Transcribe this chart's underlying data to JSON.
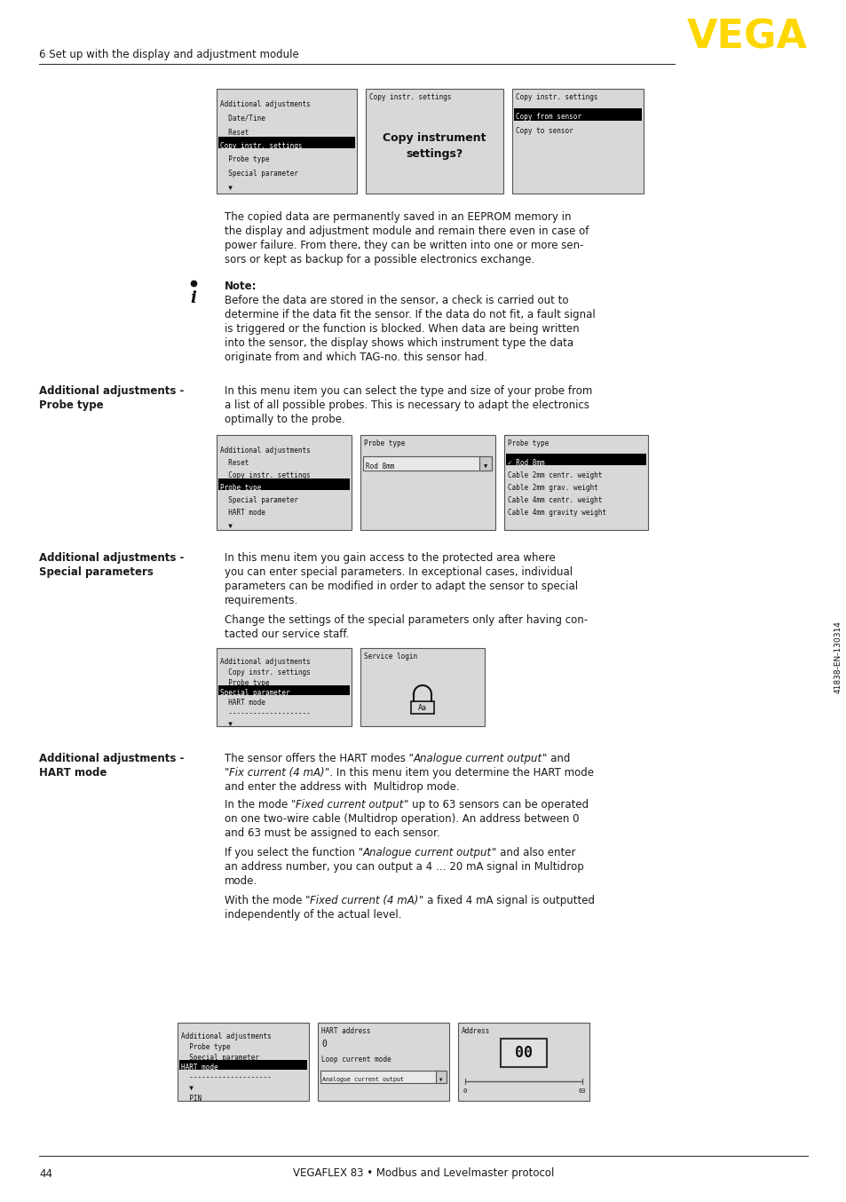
{
  "page_number": "44",
  "footer_text": "VEGAFLEX 83 • Modbus and Levelmaster protocol",
  "header_section": "6 Set up with the display and adjustment module",
  "vega_color": "#FFD700",
  "bg_color": "#FFFFFF",
  "text_color": "#1a1a1a",
  "section2_left_label_line1": "Additional adjustments -",
  "section2_left_label_line2": "Probe type",
  "section3_left_label_line1": "Additional adjustments -",
  "section3_left_label_line2": "Special parameters",
  "section4_left_label_line1": "Additional adjustments -",
  "section4_left_label_line2": "HART mode",
  "note_title": "Note:",
  "body1_lines": [
    "The copied data are permanently saved in an EEPROM memory in",
    "the display and adjustment module and remain there even in case of",
    "power failure. From there, they can be written into one or more sen-",
    "sors or kept as backup for a possible electronics exchange."
  ],
  "note_lines": [
    "Before the data are stored in the sensor, a check is carried out to",
    "determine if the data fit the sensor. If the data do not fit, a fault signal",
    "is triggered or the function is blocked. When data are being written",
    "into the sensor, the display shows which instrument type the data",
    "originate from and which TAG-no. this sensor had."
  ],
  "sec2_body_lines": [
    "In this menu item you can select the type and size of your probe from",
    "a list of all possible probes. This is necessary to adapt the electronics",
    "optimally to the probe."
  ],
  "sec3_body_lines1": [
    "In this menu item you gain access to the protected area where",
    "you can enter special parameters. In exceptional cases, individual",
    "parameters can be modified in order to adapt the sensor to special",
    "requirements."
  ],
  "sec3_body_lines2": [
    "Change the settings of the special parameters only after having con-",
    "tacted our service staff."
  ],
  "sec4_body_lines1_plain": [
    "The sensor offers the HART modes “",
    "” and",
    "“",
    "”. In this menu item you determine the HART mode",
    "and enter the address with  Multidrop mode."
  ],
  "sec4_body_lines2_plain": [
    "In the mode “",
    "” up to 63 sensors can be operated",
    "on one two-wire cable (Multidrop operation). An address between 0",
    "and 63 must be assigned to each sensor."
  ],
  "sec4_body_lines3_plain": [
    "If you select the function “",
    "” and also enter",
    "an address number, you can output a 4 … 20 mA signal in Multidrop",
    "mode."
  ],
  "sec4_body_lines4_plain": [
    "With the mode “",
    "” a fixed 4 mA signal is outputted",
    "independently of the actual level."
  ],
  "sidebar_text": "41838-EN-130314",
  "highlight_color": "#000000",
  "screen_bg": "#d8d8d8",
  "screen_border": "#555555"
}
